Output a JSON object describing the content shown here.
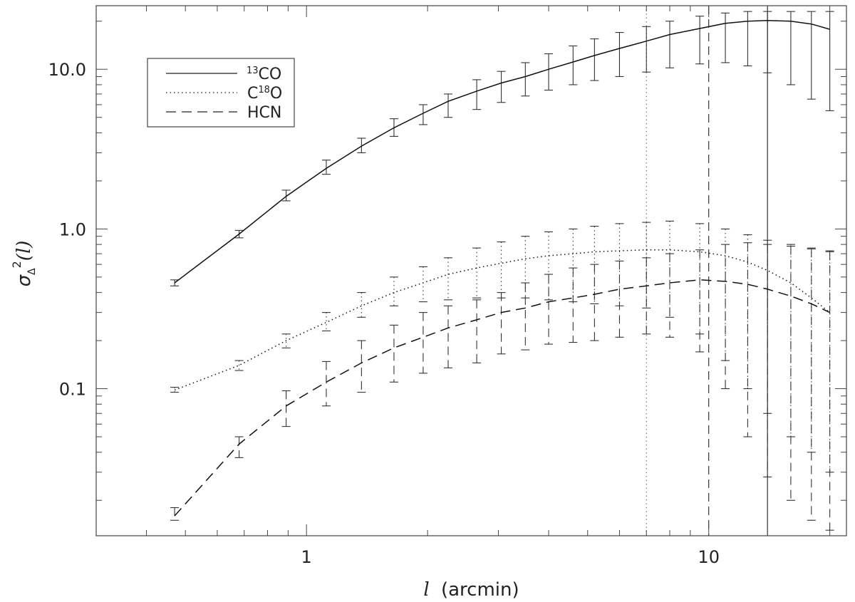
{
  "chart_data": {
    "type": "line",
    "xlabel": {
      "symbol": "l",
      "unit": "(arcmin)"
    },
    "ylabel": {
      "sigma": "σ",
      "sub": "Δ",
      "sup": "2",
      "arg": "(l)"
    },
    "xscale": "log",
    "yscale": "log",
    "xlim": [
      0.3,
      22
    ],
    "ylim": [
      0.012,
      25
    ],
    "xticks": [
      {
        "value": 1,
        "label": "1"
      },
      {
        "value": 10,
        "label": "10"
      }
    ],
    "yticks": [
      {
        "value": 0.1,
        "label": "0.1"
      },
      {
        "value": 1,
        "label": "1.0"
      },
      {
        "value": 10,
        "label": "10.0"
      }
    ],
    "grid": false,
    "legend_position": "top-left",
    "vlines": [
      {
        "x": 7.0,
        "style": "dotted"
      },
      {
        "x": 10.0,
        "style": "dashed"
      },
      {
        "x": 14.0,
        "style": "solid"
      }
    ],
    "series": [
      {
        "name": "¹³CO",
        "name_base": "CO",
        "name_sup": "13",
        "style": "solid",
        "x": [
          0.47,
          0.68,
          0.89,
          1.12,
          1.37,
          1.65,
          1.95,
          2.25,
          2.65,
          3.05,
          3.5,
          4.0,
          4.6,
          5.2,
          6.0,
          7.0,
          8.0,
          9.5,
          11.0,
          12.5,
          14.0,
          16.0,
          18.0,
          20.0
        ],
        "y": [
          0.46,
          0.93,
          1.6,
          2.4,
          3.3,
          4.3,
          5.3,
          6.3,
          7.3,
          8.2,
          9.0,
          10.0,
          11.1,
          12.2,
          13.5,
          15.0,
          16.5,
          18.0,
          19.4,
          20.0,
          20.2,
          20.0,
          19.2,
          17.8
        ],
        "err_lo": [
          0.44,
          0.88,
          1.5,
          2.2,
          3.0,
          3.8,
          4.5,
          5.0,
          5.6,
          6.2,
          6.8,
          7.4,
          8.0,
          8.5,
          9.0,
          9.6,
          10.2,
          10.8,
          11.0,
          10.5,
          9.5,
          8.0,
          6.5,
          5.5
        ],
        "err_hi": [
          0.48,
          0.98,
          1.75,
          2.7,
          3.7,
          4.9,
          6.0,
          7.0,
          8.6,
          9.7,
          11.0,
          12.5,
          14.0,
          15.5,
          17.0,
          18.5,
          20.0,
          21.5,
          22.5,
          23.0,
          23.0,
          23.0,
          23.0,
          23.0
        ]
      },
      {
        "name": "C¹⁸O",
        "name_pre": "C",
        "name_sup": "18",
        "name_post": "O",
        "style": "dotted",
        "x": [
          0.47,
          0.68,
          0.89,
          1.12,
          1.37,
          1.65,
          1.95,
          2.25,
          2.65,
          3.05,
          3.5,
          4.0,
          4.6,
          5.2,
          6.0,
          7.0,
          8.0,
          9.5,
          11.0,
          12.5,
          14.0,
          16.0,
          18.0,
          20.0
        ],
        "y": [
          0.098,
          0.14,
          0.2,
          0.26,
          0.33,
          0.4,
          0.46,
          0.52,
          0.57,
          0.61,
          0.65,
          0.68,
          0.7,
          0.72,
          0.73,
          0.74,
          0.74,
          0.72,
          0.68,
          0.62,
          0.55,
          0.46,
          0.37,
          0.3
        ],
        "err_lo": [
          0.095,
          0.13,
          0.18,
          0.23,
          0.28,
          0.33,
          0.35,
          0.36,
          0.37,
          0.37,
          0.37,
          0.36,
          0.35,
          0.34,
          0.33,
          0.32,
          0.28,
          0.22,
          0.15,
          0.1,
          0.07,
          0.05,
          0.04,
          0.03
        ],
        "err_hi": [
          0.102,
          0.15,
          0.22,
          0.3,
          0.4,
          0.5,
          0.58,
          0.66,
          0.76,
          0.83,
          0.9,
          0.96,
          1.0,
          1.04,
          1.08,
          1.1,
          1.12,
          1.08,
          1.0,
          0.92,
          0.85,
          0.8,
          0.76,
          0.73
        ]
      },
      {
        "name": "HCN",
        "style": "dashed",
        "x": [
          0.47,
          0.68,
          0.89,
          1.12,
          1.37,
          1.65,
          1.95,
          2.25,
          2.65,
          3.05,
          3.5,
          4.0,
          4.6,
          5.2,
          6.0,
          7.0,
          8.0,
          9.5,
          11.0,
          12.5,
          14.0,
          16.0,
          18.0,
          20.0
        ],
        "y": [
          0.016,
          0.045,
          0.078,
          0.11,
          0.145,
          0.18,
          0.21,
          0.24,
          0.27,
          0.3,
          0.32,
          0.35,
          0.37,
          0.39,
          0.42,
          0.44,
          0.46,
          0.48,
          0.47,
          0.45,
          0.42,
          0.38,
          0.34,
          0.3
        ],
        "err_lo": [
          0.015,
          0.037,
          0.058,
          0.078,
          0.095,
          0.11,
          0.125,
          0.135,
          0.145,
          0.165,
          0.175,
          0.19,
          0.195,
          0.2,
          0.21,
          0.22,
          0.21,
          0.17,
          0.1,
          0.05,
          0.028,
          0.02,
          0.015,
          0.013
        ],
        "err_hi": [
          0.018,
          0.05,
          0.097,
          0.148,
          0.2,
          0.25,
          0.3,
          0.33,
          0.36,
          0.4,
          0.46,
          0.52,
          0.57,
          0.6,
          0.63,
          0.66,
          0.7,
          0.74,
          0.8,
          0.82,
          0.8,
          0.78,
          0.75,
          0.72
        ]
      }
    ]
  }
}
